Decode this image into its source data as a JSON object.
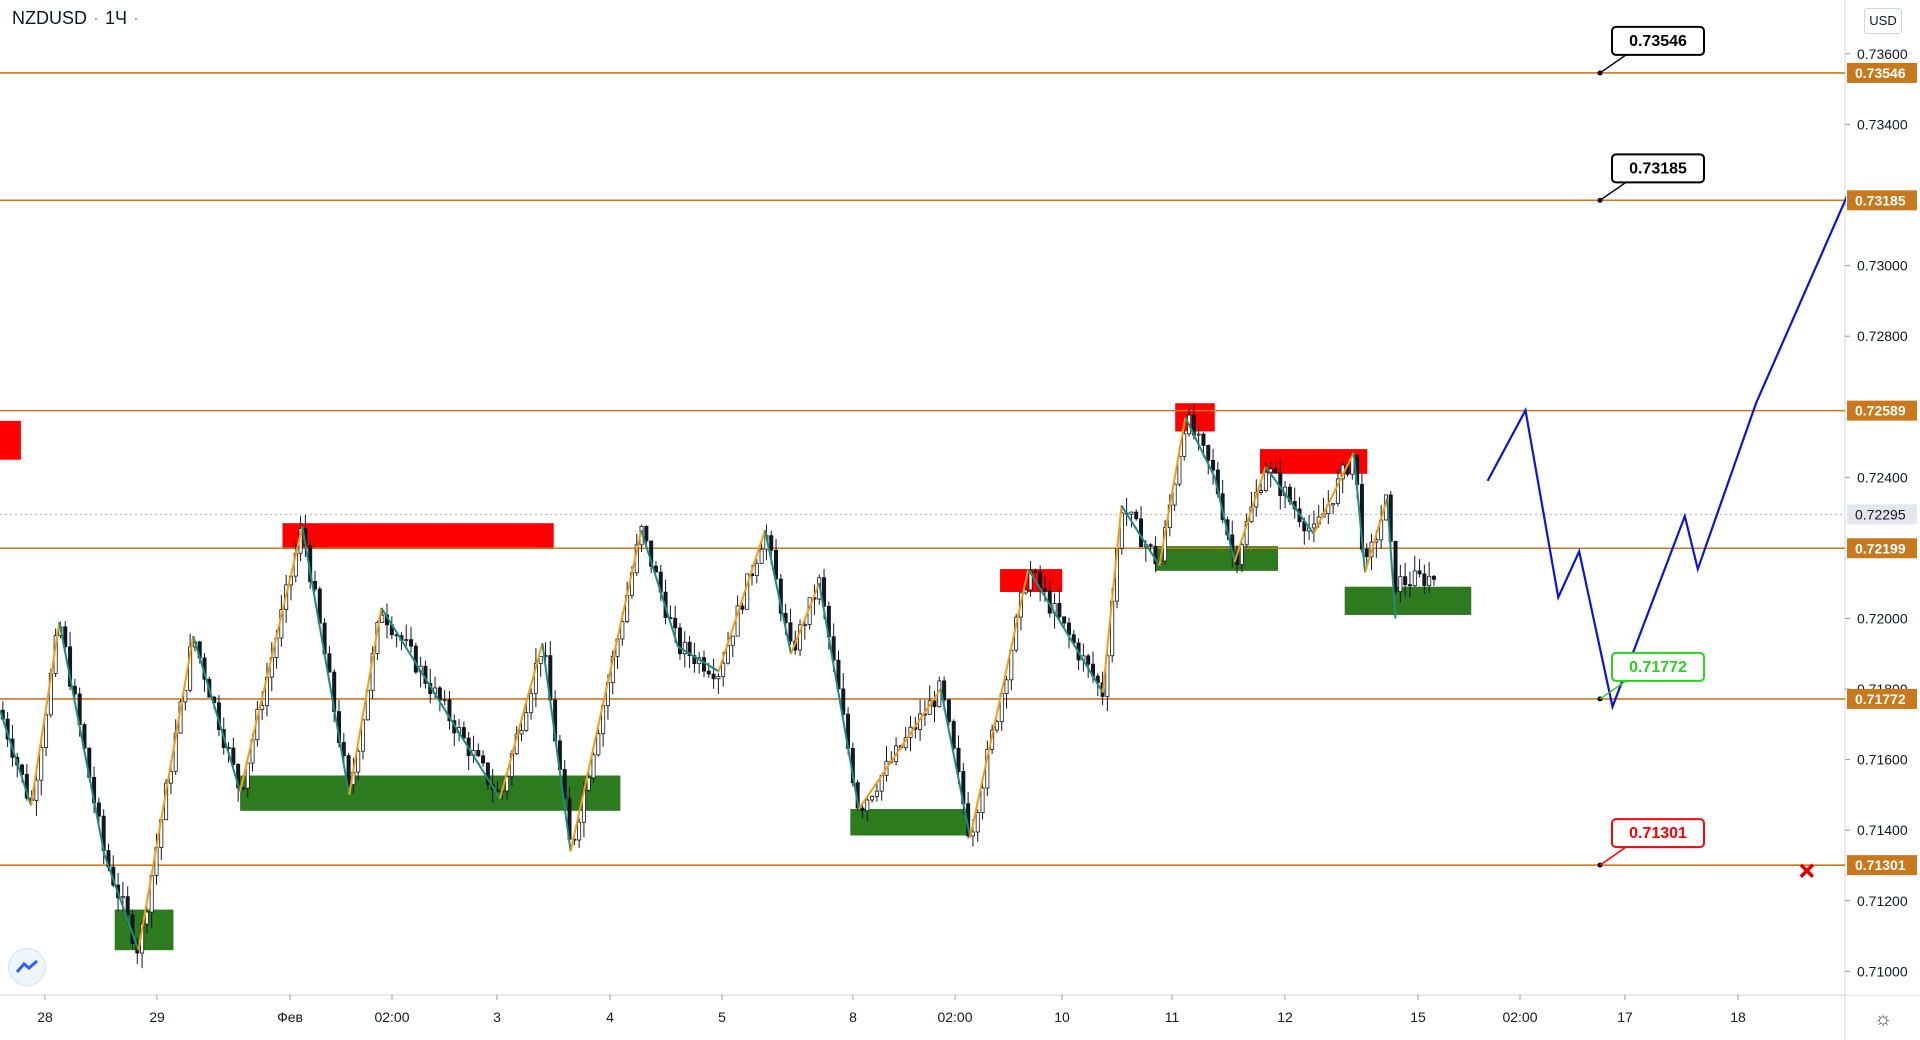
{
  "header": {
    "symbol": "NZDUSD",
    "separator": "·",
    "interval": "1Ч",
    "dot": "·"
  },
  "currency_button": "USD",
  "colors": {
    "level_line": "#c8791e",
    "level_label_bg": "#c8791e",
    "current_price_bg": "#e6e6ee",
    "supply_zone": "#ff0000",
    "demand_zone": "#2e7a1f",
    "zigzag_up": "#f39c12",
    "zigzag_down": "#1f8c7a",
    "projection": "#0a14d6",
    "candle": "#131722",
    "callout_target": "#000000",
    "callout_entry": "#2bd21f",
    "callout_stop": "#ff0000"
  },
  "chart_data": {
    "type": "candlestick",
    "symbol": "NZDUSD",
    "interval": "1Ч",
    "currency": "USD",
    "ylim": [
      0.7095,
      0.7373
    ],
    "y_ticks": [
      "0.73600",
      "0.73400",
      "0.73000",
      "0.72800",
      "0.72400",
      "0.72000",
      "0.71800",
      "0.71600",
      "0.71400",
      "0.71200",
      "0.71000"
    ],
    "x_ticks": [
      "28",
      "29",
      "Фев",
      "02:00",
      "3",
      "4",
      "5",
      "8",
      "02:00",
      "10",
      "11",
      "12",
      "15",
      "02:00",
      "17",
      "18"
    ],
    "levels": [
      {
        "price": 0.73546,
        "label": "0.73546"
      },
      {
        "price": 0.73185,
        "label": "0.73185"
      },
      {
        "price": 0.72589,
        "label": "0.72589"
      },
      {
        "price": 0.72199,
        "label": "0.72199"
      },
      {
        "price": 0.71772,
        "label": "0.71772"
      },
      {
        "price": 0.71301,
        "label": "0.71301"
      }
    ],
    "current_price": {
      "price": 0.72295,
      "label": "0.72295"
    },
    "callouts": [
      {
        "label": "0.73546",
        "price": 0.73546,
        "role": "target"
      },
      {
        "label": "0.73185",
        "price": 0.73185,
        "role": "target"
      },
      {
        "label": "0.71772",
        "price": 0.71772,
        "role": "entry"
      },
      {
        "label": "0.71301",
        "price": 0.71301,
        "role": "stop"
      }
    ],
    "supply_zones": [
      {
        "x0": 0.0,
        "x1": 0.37,
        "top": 0.7256,
        "bottom": 0.7245
      },
      {
        "x0": 5.0,
        "x1": 9.8,
        "top": 0.7227,
        "bottom": 0.722
      },
      {
        "x0": 17.7,
        "x1": 18.8,
        "top": 0.7214,
        "bottom": 0.72075
      },
      {
        "x0": 20.8,
        "x1": 21.5,
        "top": 0.7261,
        "bottom": 0.7253
      },
      {
        "x0": 22.3,
        "x1": 24.2,
        "top": 0.7248,
        "bottom": 0.7241
      }
    ],
    "demand_zones": [
      {
        "x0": 2.03,
        "x1": 3.07,
        "top": 0.71175,
        "bottom": 0.7106
      },
      {
        "x0": 4.25,
        "x1": 10.98,
        "top": 0.71555,
        "bottom": 0.71455
      },
      {
        "x0": 15.05,
        "x1": 17.17,
        "top": 0.7146,
        "bottom": 0.71385
      },
      {
        "x0": 20.45,
        "x1": 22.62,
        "top": 0.72205,
        "bottom": 0.72135
      },
      {
        "x0": 23.8,
        "x1": 26.04,
        "top": 0.7209,
        "bottom": 0.7201
      }
    ],
    "zigzag": [
      [
        0.0,
        0.7174
      ],
      [
        0.55,
        0.7147
      ],
      [
        1.05,
        0.7199
      ],
      [
        1.85,
        0.7133
      ],
      [
        2.45,
        0.7106
      ],
      [
        3.42,
        0.7195
      ],
      [
        4.25,
        0.7151
      ],
      [
        5.35,
        0.7226
      ],
      [
        6.18,
        0.715
      ],
      [
        6.75,
        0.7203
      ],
      [
        8.85,
        0.7149
      ],
      [
        9.6,
        0.7193
      ],
      [
        10.1,
        0.7134
      ],
      [
        11.35,
        0.7225
      ],
      [
        12.0,
        0.7192
      ],
      [
        12.72,
        0.7185
      ],
      [
        13.54,
        0.7225
      ],
      [
        14.0,
        0.719
      ],
      [
        14.5,
        0.721
      ],
      [
        15.2,
        0.7146
      ],
      [
        16.65,
        0.718
      ],
      [
        17.17,
        0.7138
      ],
      [
        18.2,
        0.7214
      ],
      [
        19.52,
        0.7179
      ],
      [
        19.85,
        0.7232
      ],
      [
        20.52,
        0.7215
      ],
      [
        20.98,
        0.7257
      ],
      [
        21.5,
        0.724
      ],
      [
        21.85,
        0.7216
      ],
      [
        22.4,
        0.7243
      ],
      [
        23.25,
        0.7224
      ],
      [
        23.96,
        0.7247
      ],
      [
        24.16,
        0.7213
      ],
      [
        24.55,
        0.7234
      ],
      [
        24.7,
        0.72
      ]
    ],
    "projection": [
      [
        26.33,
        0.7239
      ],
      [
        27.0,
        0.7259
      ],
      [
        27.58,
        0.7206
      ],
      [
        27.95,
        0.7219
      ],
      [
        28.54,
        0.7175
      ],
      [
        29.82,
        0.7229
      ],
      [
        30.05,
        0.7214
      ],
      [
        31.08,
        0.7261
      ],
      [
        32.7,
        0.732
      ],
      [
        32.9,
        0.7305
      ],
      [
        33.78,
        0.7339
      ],
      [
        33.95,
        0.7335
      ]
    ],
    "stop_marker": {
      "x": 33.75,
      "price": 0.71285
    }
  }
}
